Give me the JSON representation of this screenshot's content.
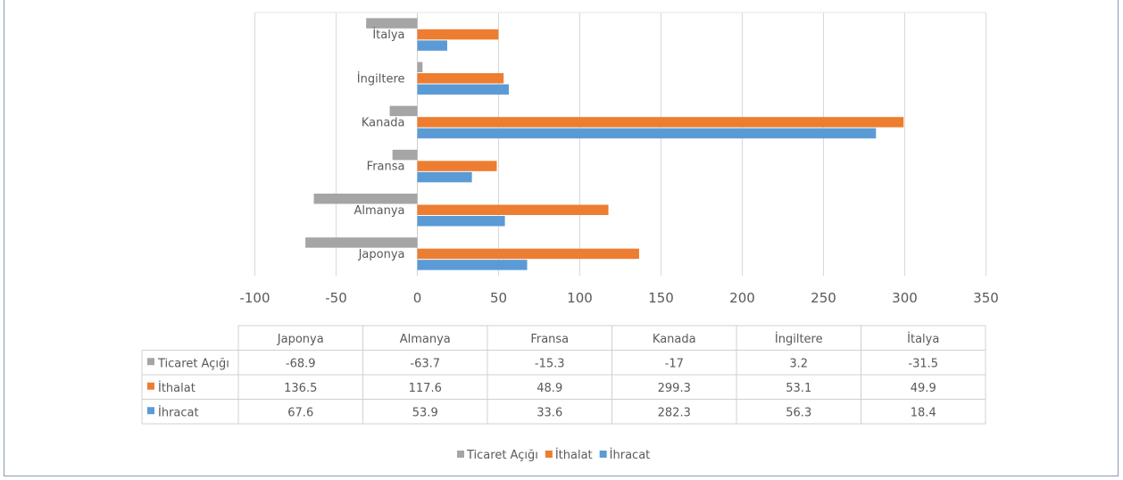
{
  "chart_data": {
    "type": "bar",
    "orientation": "horizontal",
    "title": "",
    "xlabel": "",
    "ylabel": "",
    "categories": [
      "Japonya",
      "Almanya",
      "Fransa",
      "Kanada",
      "İngiltere",
      "İtalya"
    ],
    "series": [
      {
        "name": "Ticaret Açığı",
        "color": "#a5a5a5",
        "values": [
          -68.9,
          -63.7,
          -15.3,
          -17,
          3.2,
          -31.5
        ]
      },
      {
        "name": "İthalat",
        "color": "#ed7d31",
        "values": [
          136.5,
          117.6,
          48.9,
          299.3,
          53.1,
          49.9
        ]
      },
      {
        "name": "İhracat",
        "color": "#5b9bd5",
        "values": [
          67.6,
          53.9,
          33.6,
          282.3,
          56.3,
          18.4
        ]
      }
    ],
    "xlim": [
      -100,
      350
    ],
    "ticks": [
      -100,
      -50,
      0,
      50,
      100,
      150,
      200,
      250,
      300,
      350
    ],
    "tick_labels": [
      "-100",
      "-50",
      "0",
      "50",
      "100",
      "150",
      "200",
      "250",
      "300",
      "350"
    ],
    "table_values": [
      [
        "-68.9",
        "-63.7",
        "-15.3",
        "-17",
        "3.2",
        "-31.5"
      ],
      [
        "136.5",
        "117.6",
        "48.9",
        "299.3",
        "53.1",
        "49.9"
      ],
      [
        "67.6",
        "53.9",
        "33.6",
        "282.3",
        "56.3",
        "18.4"
      ]
    ],
    "grid": true,
    "legend_position": "bottom",
    "data_table": true
  }
}
